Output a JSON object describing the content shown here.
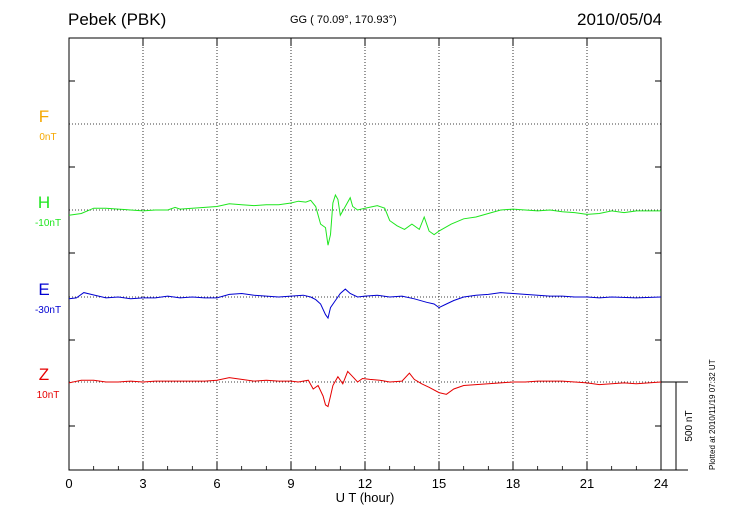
{
  "header": {
    "station": "Pebek (PBK)",
    "coords": "GG ( 70.09°, 170.93°)",
    "date": "2010/05/04"
  },
  "plotted_stamp": "Plotted at 2010/11/19 07:32 UT",
  "chart_data": {
    "type": "line",
    "xlabel": "U T (hour)",
    "xlim": [
      0,
      24
    ],
    "xticks": [
      "0",
      "3",
      "6",
      "9",
      "12",
      "15",
      "18",
      "21",
      "24"
    ],
    "scale_bar_label": "500 nT",
    "grid": true,
    "series": [
      {
        "name": "F",
        "offset_label": "0nT",
        "color": "#f5a800",
        "points": []
      },
      {
        "name": "H",
        "offset_label": "-10nT",
        "color": "#1ee61e",
        "points": [
          [
            0.0,
            -30
          ],
          [
            0.5,
            -20
          ],
          [
            1.0,
            10
          ],
          [
            1.5,
            10
          ],
          [
            2.0,
            5
          ],
          [
            2.5,
            0
          ],
          [
            3.0,
            -5
          ],
          [
            3.5,
            0
          ],
          [
            4.0,
            0
          ],
          [
            4.3,
            15
          ],
          [
            4.5,
            5
          ],
          [
            5.0,
            10
          ],
          [
            5.5,
            15
          ],
          [
            6.0,
            20
          ],
          [
            6.5,
            35
          ],
          [
            7.0,
            30
          ],
          [
            7.5,
            25
          ],
          [
            8.0,
            30
          ],
          [
            8.5,
            30
          ],
          [
            9.0,
            40
          ],
          [
            9.3,
            50
          ],
          [
            9.6,
            45
          ],
          [
            9.8,
            55
          ],
          [
            10.0,
            20
          ],
          [
            10.2,
            -80
          ],
          [
            10.4,
            -100
          ],
          [
            10.5,
            -200
          ],
          [
            10.6,
            -140
          ],
          [
            10.7,
            40
          ],
          [
            10.8,
            85
          ],
          [
            10.9,
            60
          ],
          [
            11.0,
            -30
          ],
          [
            11.2,
            20
          ],
          [
            11.4,
            70
          ],
          [
            11.5,
            20
          ],
          [
            11.7,
            0
          ],
          [
            12.0,
            10
          ],
          [
            12.5,
            25
          ],
          [
            12.8,
            10
          ],
          [
            13.0,
            -60
          ],
          [
            13.3,
            -90
          ],
          [
            13.6,
            -110
          ],
          [
            13.9,
            -80
          ],
          [
            14.2,
            -110
          ],
          [
            14.4,
            -40
          ],
          [
            14.6,
            -120
          ],
          [
            14.8,
            -140
          ],
          [
            15.0,
            -120
          ],
          [
            15.5,
            -80
          ],
          [
            16.0,
            -50
          ],
          [
            16.5,
            -40
          ],
          [
            17.0,
            -20
          ],
          [
            17.5,
            0
          ],
          [
            18.0,
            5
          ],
          [
            18.5,
            0
          ],
          [
            19.0,
            -5
          ],
          [
            19.5,
            0
          ],
          [
            20.0,
            -10
          ],
          [
            20.5,
            -15
          ],
          [
            21.0,
            -25
          ],
          [
            21.5,
            -20
          ],
          [
            22.0,
            -5
          ],
          [
            22.5,
            -15
          ],
          [
            23.0,
            -5
          ],
          [
            24.0,
            -5
          ]
        ]
      },
      {
        "name": "E",
        "offset_label": "-30nT",
        "color": "#0000d2",
        "points": [
          [
            0.0,
            -10
          ],
          [
            0.3,
            -5
          ],
          [
            0.6,
            25
          ],
          [
            0.9,
            15
          ],
          [
            1.2,
            5
          ],
          [
            1.5,
            -5
          ],
          [
            2.0,
            0
          ],
          [
            2.5,
            -10
          ],
          [
            3.0,
            -5
          ],
          [
            3.5,
            -5
          ],
          [
            4.0,
            5
          ],
          [
            4.5,
            -5
          ],
          [
            5.0,
            0
          ],
          [
            5.5,
            -5
          ],
          [
            6.0,
            -5
          ],
          [
            6.5,
            15
          ],
          [
            7.0,
            20
          ],
          [
            7.5,
            10
          ],
          [
            8.0,
            5
          ],
          [
            8.5,
            0
          ],
          [
            9.0,
            5
          ],
          [
            9.5,
            10
          ],
          [
            9.8,
            0
          ],
          [
            10.0,
            -15
          ],
          [
            10.2,
            -40
          ],
          [
            10.4,
            -100
          ],
          [
            10.5,
            -120
          ],
          [
            10.6,
            -60
          ],
          [
            10.8,
            -20
          ],
          [
            11.0,
            20
          ],
          [
            11.2,
            45
          ],
          [
            11.4,
            20
          ],
          [
            11.7,
            0
          ],
          [
            12.0,
            5
          ],
          [
            12.5,
            10
          ],
          [
            13.0,
            0
          ],
          [
            13.5,
            5
          ],
          [
            14.0,
            -10
          ],
          [
            14.5,
            -30
          ],
          [
            14.8,
            -40
          ],
          [
            15.0,
            -60
          ],
          [
            15.3,
            -40
          ],
          [
            15.6,
            -20
          ],
          [
            16.0,
            0
          ],
          [
            16.5,
            10
          ],
          [
            17.0,
            15
          ],
          [
            17.5,
            25
          ],
          [
            18.0,
            20
          ],
          [
            18.5,
            15
          ],
          [
            19.0,
            10
          ],
          [
            19.5,
            5
          ],
          [
            20.0,
            5
          ],
          [
            20.5,
            0
          ],
          [
            21.0,
            0
          ],
          [
            21.5,
            -5
          ],
          [
            22.0,
            0
          ],
          [
            23.0,
            -5
          ],
          [
            24.0,
            0
          ]
        ]
      },
      {
        "name": "Z",
        "offset_label": "10nT",
        "color": "#e60000",
        "points": [
          [
            0.0,
            -5
          ],
          [
            0.5,
            10
          ],
          [
            1.0,
            10
          ],
          [
            1.5,
            0
          ],
          [
            2.0,
            0
          ],
          [
            2.5,
            5
          ],
          [
            3.0,
            0
          ],
          [
            3.5,
            5
          ],
          [
            4.0,
            5
          ],
          [
            4.5,
            5
          ],
          [
            5.0,
            5
          ],
          [
            5.5,
            5
          ],
          [
            6.0,
            10
          ],
          [
            6.5,
            25
          ],
          [
            7.0,
            15
          ],
          [
            7.5,
            5
          ],
          [
            8.0,
            10
          ],
          [
            8.5,
            5
          ],
          [
            9.0,
            5
          ],
          [
            9.3,
            0
          ],
          [
            9.7,
            10
          ],
          [
            9.9,
            -40
          ],
          [
            10.1,
            -20
          ],
          [
            10.3,
            -80
          ],
          [
            10.4,
            -130
          ],
          [
            10.5,
            -140
          ],
          [
            10.6,
            -80
          ],
          [
            10.7,
            -20
          ],
          [
            10.9,
            30
          ],
          [
            11.1,
            -10
          ],
          [
            11.3,
            60
          ],
          [
            11.5,
            30
          ],
          [
            11.7,
            0
          ],
          [
            11.9,
            20
          ],
          [
            12.2,
            15
          ],
          [
            12.6,
            10
          ],
          [
            13.0,
            0
          ],
          [
            13.5,
            5
          ],
          [
            13.8,
            50
          ],
          [
            14.0,
            15
          ],
          [
            14.3,
            -10
          ],
          [
            14.6,
            -30
          ],
          [
            15.0,
            -60
          ],
          [
            15.3,
            -70
          ],
          [
            15.6,
            -40
          ],
          [
            16.0,
            -20
          ],
          [
            16.5,
            -15
          ],
          [
            17.0,
            -10
          ],
          [
            17.5,
            -5
          ],
          [
            18.0,
            0
          ],
          [
            18.5,
            0
          ],
          [
            19.0,
            5
          ],
          [
            19.5,
            5
          ],
          [
            20.0,
            5
          ],
          [
            20.5,
            0
          ],
          [
            21.0,
            -5
          ],
          [
            21.5,
            -15
          ],
          [
            22.0,
            -10
          ],
          [
            22.5,
            -5
          ],
          [
            23.0,
            -10
          ],
          [
            23.5,
            -5
          ],
          [
            24.0,
            0
          ]
        ]
      }
    ]
  }
}
